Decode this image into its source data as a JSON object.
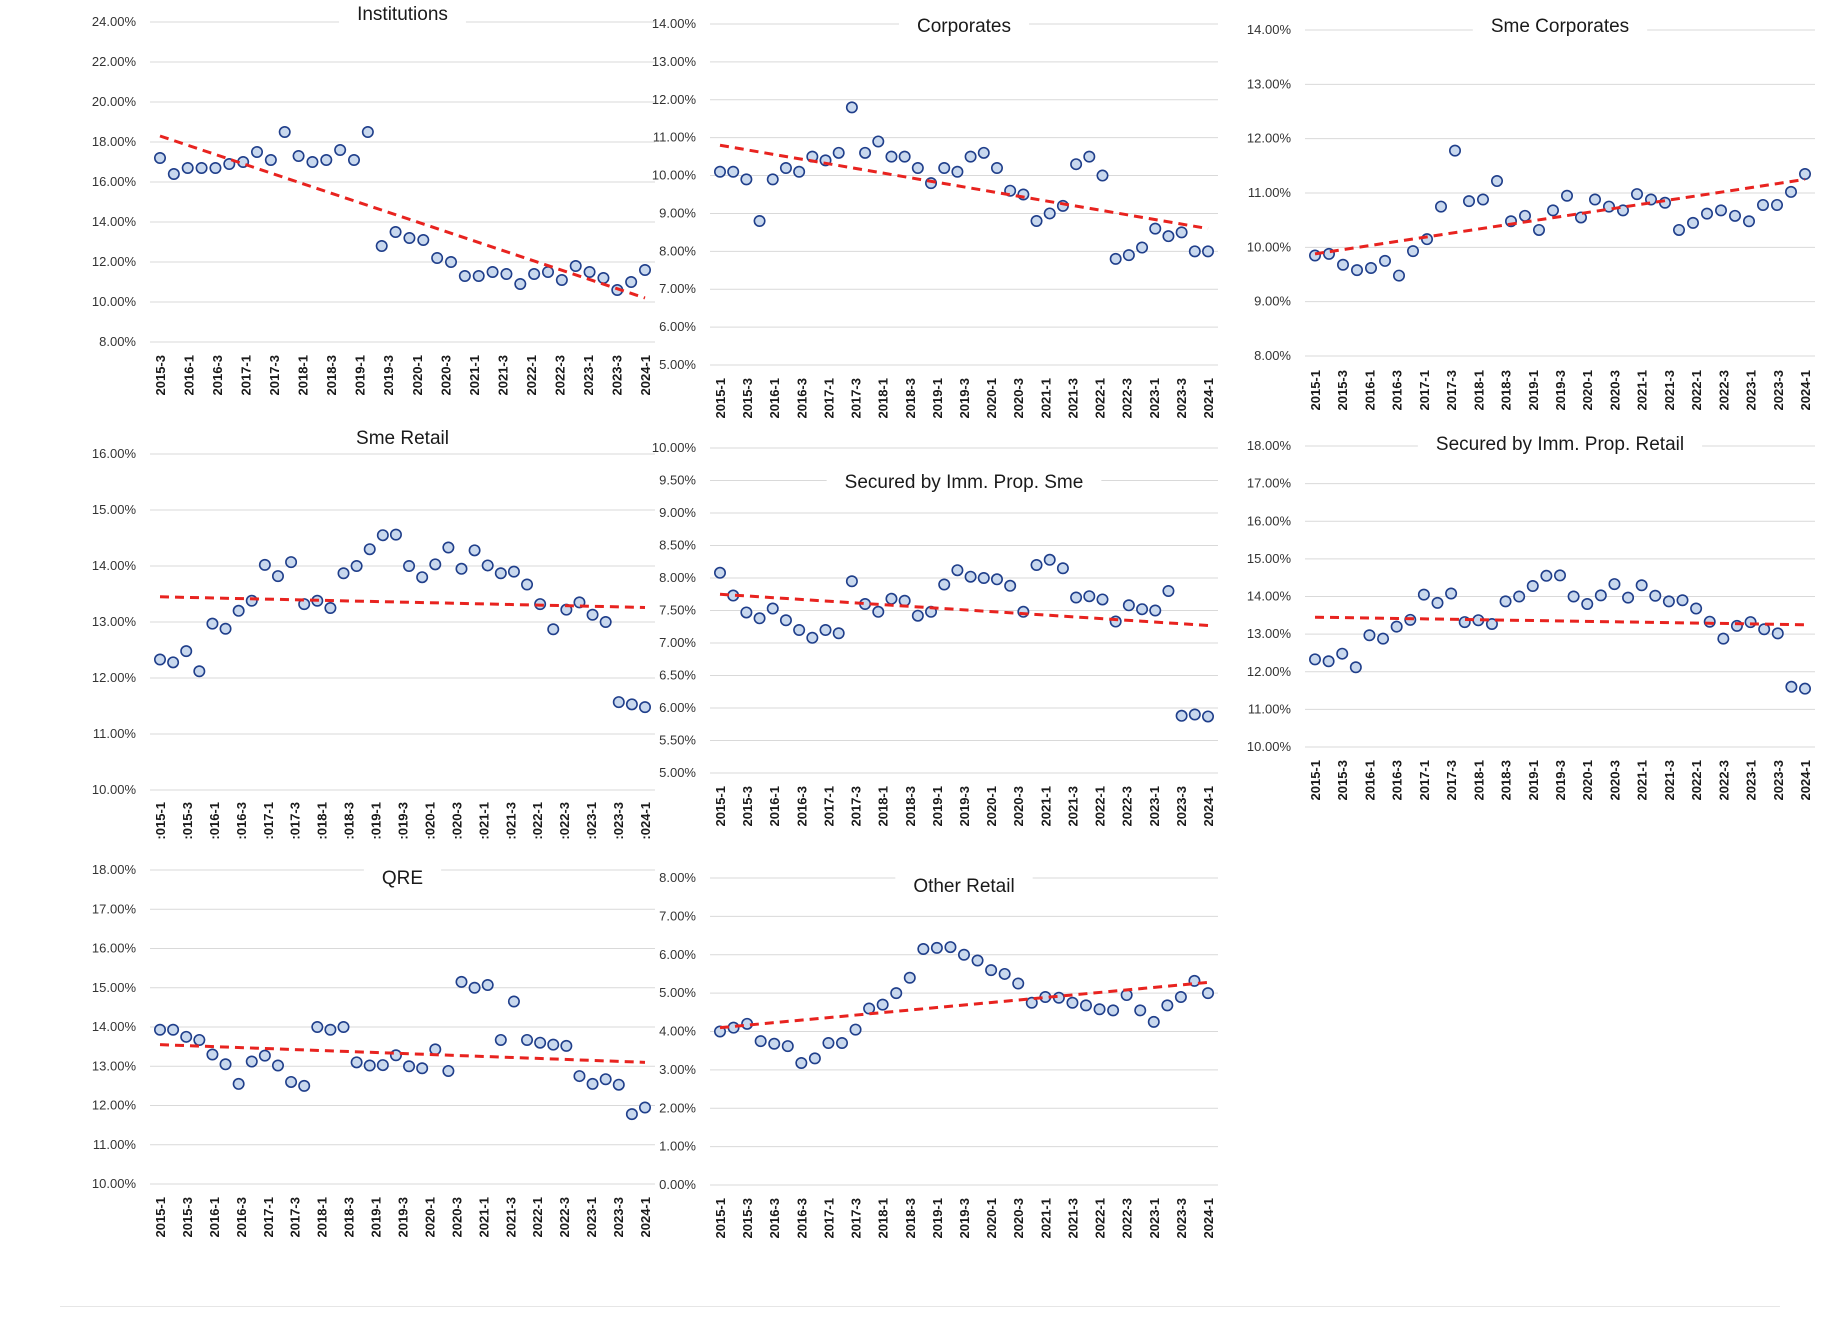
{
  "colors": {
    "marker_fill": "#c8d8ee",
    "marker_stroke": "#1f3e8a",
    "trend": "#e8231f",
    "grid": "#d9d9d9"
  },
  "chart_data": [
    {
      "type": "scatter",
      "title": "Institutions",
      "ylim": [
        0.08,
        0.24
      ],
      "yticks": [
        0.08,
        0.1,
        0.12,
        0.14,
        0.16,
        0.18,
        0.2,
        0.22,
        0.24
      ],
      "xticks": [
        "2015-3",
        "2016-1",
        "2016-3",
        "2017-1",
        "2017-3",
        "2018-1",
        "2018-3",
        "2019-1",
        "2019-3",
        "2020-1",
        "2020-3",
        "2021-1",
        "2021-3",
        "2022-1",
        "2022-3",
        "2023-1",
        "2023-3",
        "2024-1"
      ],
      "values": [
        0.172,
        0.164,
        0.167,
        0.167,
        0.167,
        0.169,
        0.17,
        0.175,
        0.171,
        0.185,
        0.173,
        0.17,
        0.171,
        0.176,
        0.171,
        0.185,
        0.128,
        0.135,
        0.132,
        0.131,
        0.122,
        0.12,
        0.113,
        0.113,
        0.115,
        0.114,
        0.109,
        0.114,
        0.115,
        0.111,
        0.118,
        0.115,
        0.112,
        0.106,
        0.11,
        0.116
      ],
      "trend": [
        0.183,
        0.102
      ]
    },
    {
      "type": "scatter",
      "title": "Corporates",
      "ylim": [
        0.05,
        0.14
      ],
      "yticks": [
        0.05,
        0.06,
        0.07,
        0.08,
        0.09,
        0.1,
        0.11,
        0.12,
        0.13,
        0.14
      ],
      "xticks": [
        "2015-1",
        "2015-3",
        "2016-1",
        "2016-3",
        "2017-1",
        "2017-3",
        "2018-1",
        "2018-3",
        "2019-1",
        "2019-3",
        "2020-1",
        "2020-3",
        "2021-1",
        "2021-3",
        "2022-1",
        "2022-3",
        "2023-1",
        "2023-3",
        "2024-1"
      ],
      "values": [
        0.101,
        0.101,
        0.099,
        0.088,
        0.099,
        0.102,
        0.101,
        0.105,
        0.104,
        0.106,
        0.118,
        0.106,
        0.109,
        0.105,
        0.105,
        0.102,
        0.098,
        0.102,
        0.101,
        0.105,
        0.106,
        0.102,
        0.096,
        0.095,
        0.088,
        0.09,
        0.092,
        0.103,
        0.105,
        0.1,
        0.078,
        0.079,
        0.081,
        0.086,
        0.084,
        0.085,
        0.08,
        0.08
      ],
      "trend": [
        0.108,
        0.086
      ]
    },
    {
      "type": "scatter",
      "title": "Sme Corporates",
      "ylim": [
        0.08,
        0.14
      ],
      "yticks": [
        0.08,
        0.09,
        0.1,
        0.11,
        0.12,
        0.13,
        0.14
      ],
      "xticks": [
        "2015-1",
        "2015-3",
        "2016-1",
        "2016-3",
        "2017-1",
        "2017-3",
        "2018-1",
        "2018-3",
        "2019-1",
        "2019-3",
        "2020-1",
        "2020-3",
        "2021-1",
        "2021-3",
        "2022-1",
        "2022-3",
        "2023-1",
        "2023-3",
        "2024-1"
      ],
      "values": [
        0.0985,
        0.0988,
        0.0968,
        0.0958,
        0.0962,
        0.0975,
        0.0948,
        0.0993,
        0.1015,
        0.1075,
        0.1178,
        0.1085,
        0.1088,
        0.1122,
        0.1048,
        0.1058,
        0.1032,
        0.1068,
        0.1095,
        0.1055,
        0.1088,
        0.1075,
        0.1068,
        0.1098,
        0.1088,
        0.1082,
        0.1032,
        0.1045,
        0.1062,
        0.1068,
        0.1058,
        0.1048,
        0.1078,
        0.1078,
        0.1102,
        0.1135
      ],
      "trend": [
        0.0988,
        0.1125
      ]
    },
    {
      "type": "scatter",
      "title": "Sme Retail",
      "ylim": [
        0.1,
        0.16
      ],
      "yticks": [
        0.1,
        0.11,
        0.12,
        0.13,
        0.14,
        0.15,
        0.16
      ],
      "xticks": [
        ":015-1",
        ":015-3",
        ":016-1",
        ":016-3",
        ":017-1",
        ":017-3",
        ":018-1",
        ":018-3",
        ":019-1",
        ":019-3",
        ":020-1",
        ":020-3",
        ":021-1",
        ":021-3",
        ":022-1",
        ":022-3",
        ":023-1",
        ":023-3",
        ":024-1"
      ],
      "values": [
        0.1233,
        0.1228,
        0.1248,
        0.1212,
        0.1297,
        0.1288,
        0.132,
        0.1338,
        0.1402,
        0.1382,
        0.1407,
        0.1332,
        0.1338,
        0.1325,
        0.1387,
        0.14,
        0.143,
        0.1455,
        0.1456,
        0.14,
        0.138,
        0.1403,
        0.1433,
        0.1395,
        0.1428,
        0.1401,
        0.1387,
        0.139,
        0.1367,
        0.1332,
        0.1287,
        0.1322,
        0.1335,
        0.1313,
        0.13,
        0.1157,
        0.1153,
        0.1148
      ],
      "trend": [
        0.1345,
        0.1326
      ]
    },
    {
      "type": "scatter",
      "title": "Secured by Imm. Prop. Sme",
      "ylim": [
        0.05,
        0.1
      ],
      "yticks": [
        0.05,
        0.055,
        0.06,
        0.065,
        0.07,
        0.075,
        0.08,
        0.085,
        0.09,
        0.095,
        0.1
      ],
      "xticks": [
        "2015-1",
        "2015-3",
        "2016-1",
        "2016-3",
        "2017-1",
        "2017-3",
        "2018-1",
        "2018-3",
        "2019-1",
        "2019-3",
        "2020-1",
        "2020-3",
        "2021-1",
        "2021-3",
        "2022-1",
        "2022-3",
        "2023-1",
        "2023-3",
        "2024-1"
      ],
      "values": [
        0.0808,
        0.0773,
        0.0747,
        0.0738,
        0.0753,
        0.0735,
        0.072,
        0.0708,
        0.072,
        0.0715,
        0.0795,
        0.076,
        0.0748,
        0.0768,
        0.0765,
        0.0742,
        0.0748,
        0.079,
        0.0812,
        0.0802,
        0.08,
        0.0798,
        0.0788,
        0.0748,
        0.082,
        0.0828,
        0.0815,
        0.077,
        0.0772,
        0.0767,
        0.0733,
        0.0758,
        0.0752,
        0.075,
        0.078,
        0.0588,
        0.059,
        0.0587
      ],
      "trend": [
        0.0775,
        0.0727
      ]
    },
    {
      "type": "scatter",
      "title": "Secured by Imm. Prop. Retail",
      "ylim": [
        0.1,
        0.18
      ],
      "yticks": [
        0.1,
        0.11,
        0.12,
        0.13,
        0.14,
        0.15,
        0.16,
        0.17,
        0.18
      ],
      "xticks": [
        "2015-1",
        "2015-3",
        "2016-1",
        "2016-3",
        "2017-1",
        "2017-3",
        "2018-1",
        "2018-3",
        "2019-1",
        "2019-3",
        "2020-1",
        "2020-3",
        "2021-1",
        "2021-3",
        "2022-1",
        "2022-3",
        "2023-1",
        "2023-3",
        "2024-1"
      ],
      "values": [
        0.1233,
        0.1228,
        0.1248,
        0.1212,
        0.1297,
        0.1288,
        0.132,
        0.1338,
        0.1405,
        0.1383,
        0.1408,
        0.1332,
        0.1337,
        0.1327,
        0.1387,
        0.14,
        0.1428,
        0.1455,
        0.1456,
        0.14,
        0.138,
        0.1403,
        0.1433,
        0.1397,
        0.143,
        0.1402,
        0.1387,
        0.139,
        0.1368,
        0.1333,
        0.1288,
        0.1322,
        0.1332,
        0.1313,
        0.1302,
        0.116,
        0.1155
      ],
      "trend": [
        0.1345,
        0.1325
      ]
    },
    {
      "type": "scatter",
      "title": "QRE",
      "ylim": [
        0.1,
        0.18
      ],
      "yticks": [
        0.1,
        0.11,
        0.12,
        0.13,
        0.14,
        0.15,
        0.16,
        0.17,
        0.18
      ],
      "xticks": [
        "2015-1",
        "2015-3",
        "2016-1",
        "2016-3",
        "2017-1",
        "2017-3",
        "2018-1",
        "2018-3",
        "2019-1",
        "2019-3",
        "2020-1",
        "2020-3",
        "2021-1",
        "2021-3",
        "2022-1",
        "2022-3",
        "2023-1",
        "2023-3",
        "2024-1"
      ],
      "values": [
        0.1393,
        0.1393,
        0.1375,
        0.1367,
        0.133,
        0.1305,
        0.1255,
        0.1312,
        0.1327,
        0.1302,
        0.126,
        0.125,
        0.14,
        0.1393,
        0.14,
        0.131,
        0.1302,
        0.1303,
        0.1328,
        0.13,
        0.1295,
        0.1343,
        0.1288,
        0.1515,
        0.15,
        0.1507,
        0.1367,
        0.1465,
        0.1367,
        0.136,
        0.1355,
        0.1352,
        0.1275,
        0.1255,
        0.1267,
        0.1253,
        0.1178,
        0.1195
      ],
      "trend": [
        0.1355,
        0.131
      ]
    },
    {
      "type": "scatter",
      "title": "Other Retail",
      "ylim": [
        0.0,
        0.08
      ],
      "yticks": [
        0.0,
        0.01,
        0.02,
        0.03,
        0.04,
        0.05,
        0.06,
        0.07,
        0.08
      ],
      "xticks": [
        "2015-1",
        "2015-3",
        "2016-3",
        "2016-3",
        "2017-1",
        "2017-3",
        "2018-1",
        "2018-3",
        "2019-1",
        "2019-3",
        "2020-1",
        "2020-3",
        "2021-1",
        "2021-3",
        "2022-1",
        "2022-3",
        "2023-1",
        "2023-3",
        "2024-1"
      ],
      "values": [
        0.04,
        0.041,
        0.042,
        0.0375,
        0.0368,
        0.0362,
        0.0318,
        0.033,
        0.037,
        0.037,
        0.0405,
        0.046,
        0.047,
        0.05,
        0.054,
        0.0615,
        0.0618,
        0.062,
        0.06,
        0.0585,
        0.056,
        0.055,
        0.0525,
        0.0475,
        0.049,
        0.0488,
        0.0475,
        0.0468,
        0.0458,
        0.0455,
        0.0495,
        0.0455,
        0.0425,
        0.0468,
        0.049,
        0.0532,
        0.05
      ],
      "trend": [
        0.041,
        0.0528
      ]
    }
  ]
}
